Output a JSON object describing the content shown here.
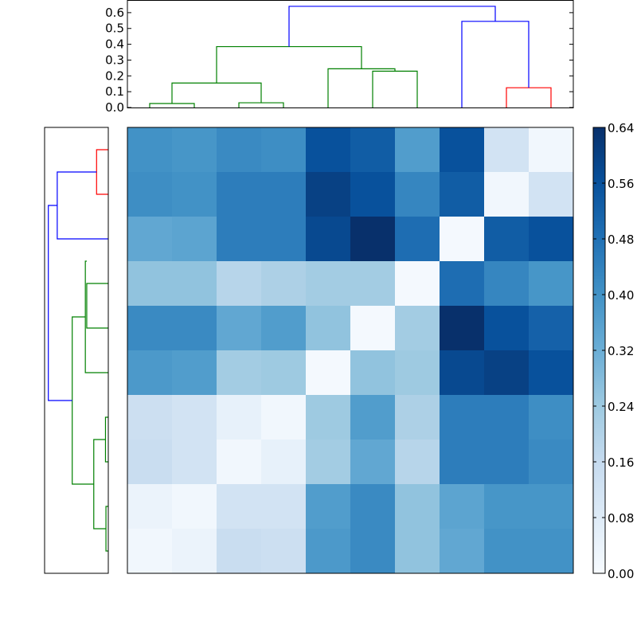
{
  "chart_data": [
    {
      "type": "heatmap",
      "title": "",
      "xlabel": "",
      "ylabel": "",
      "colormap": "Blues",
      "vmin": 0.0,
      "vmax": 0.64,
      "colorbar_ticks": [
        "0.00",
        "0.08",
        "0.16",
        "0.24",
        "0.32",
        "0.40",
        "0.48",
        "0.56",
        "0.64"
      ],
      "values": [
        [
          0.4,
          0.39,
          0.42,
          0.41,
          0.56,
          0.53,
          0.37,
          0.56,
          0.12,
          0.02
        ],
        [
          0.41,
          0.4,
          0.45,
          0.45,
          0.6,
          0.56,
          0.43,
          0.53,
          0.02,
          0.12
        ],
        [
          0.34,
          0.35,
          0.45,
          0.45,
          0.58,
          0.64,
          0.49,
          0.01,
          0.53,
          0.56
        ],
        [
          0.26,
          0.26,
          0.19,
          0.21,
          0.23,
          0.23,
          0.01,
          0.49,
          0.43,
          0.39
        ],
        [
          0.42,
          0.42,
          0.34,
          0.37,
          0.26,
          0.01,
          0.23,
          0.64,
          0.56,
          0.52
        ],
        [
          0.38,
          0.37,
          0.23,
          0.24,
          0.01,
          0.26,
          0.24,
          0.58,
          0.6,
          0.56
        ],
        [
          0.14,
          0.12,
          0.05,
          0.02,
          0.24,
          0.37,
          0.21,
          0.45,
          0.45,
          0.41
        ],
        [
          0.15,
          0.12,
          0.02,
          0.05,
          0.23,
          0.34,
          0.19,
          0.45,
          0.45,
          0.42
        ],
        [
          0.04,
          0.02,
          0.12,
          0.12,
          0.37,
          0.42,
          0.26,
          0.35,
          0.39,
          0.39
        ],
        [
          0.02,
          0.04,
          0.15,
          0.14,
          0.38,
          0.42,
          0.26,
          0.34,
          0.4,
          0.4
        ]
      ]
    },
    {
      "type": "dendrogram",
      "orientation": "top",
      "ylim": [
        0.0,
        0.68
      ],
      "yticks": [
        "0.0",
        "0.1",
        "0.2",
        "0.3",
        "0.4",
        "0.5",
        "0.6"
      ],
      "n_leaves": 10,
      "links": [
        {
          "xs": [
            0.5,
            0.5,
            1.5,
            1.5
          ],
          "ys": [
            0.0,
            0.025,
            0.025,
            0.0
          ],
          "color": "green"
        },
        {
          "xs": [
            2.5,
            2.5,
            3.5,
            3.5
          ],
          "ys": [
            0.0,
            0.03,
            0.03,
            0.0
          ],
          "color": "green"
        },
        {
          "xs": [
            1.0,
            1.0,
            3.0,
            3.0
          ],
          "ys": [
            0.025,
            0.155,
            0.155,
            0.03
          ],
          "color": "green"
        },
        {
          "xs": [
            5.5,
            5.5,
            6.5,
            6.5
          ],
          "ys": [
            0.0,
            0.23,
            0.23,
            0.0
          ],
          "color": "green"
        },
        {
          "xs": [
            4.5,
            4.5,
            6.0,
            6.0
          ],
          "ys": [
            0.0,
            0.245,
            0.245,
            0.23
          ],
          "color": "green"
        },
        {
          "xs": [
            2.0,
            2.0,
            5.25,
            5.25
          ],
          "ys": [
            0.155,
            0.385,
            0.385,
            0.245
          ],
          "color": "green"
        },
        {
          "xs": [
            8.5,
            8.5,
            9.5,
            9.5
          ],
          "ys": [
            0.0,
            0.125,
            0.125,
            0.0
          ],
          "color": "red"
        },
        {
          "xs": [
            7.5,
            7.5,
            9.0,
            9.0
          ],
          "ys": [
            0.0,
            0.545,
            0.545,
            0.125
          ],
          "color": "blue"
        },
        {
          "xs": [
            3.625,
            3.625,
            8.25,
            8.25
          ],
          "ys": [
            0.385,
            0.64,
            0.64,
            0.545
          ],
          "color": "blue"
        }
      ]
    },
    {
      "type": "dendrogram",
      "orientation": "left",
      "n_leaves": 10,
      "links": [
        {
          "xs": [
            0.5,
            0.5,
            1.5,
            1.5
          ],
          "ys": [
            0.0,
            0.125,
            0.125,
            0.0
          ],
          "color": "red"
        },
        {
          "xs": [
            1.0,
            1.0,
            2.5,
            2.5
          ],
          "ys": [
            0.125,
            0.545,
            0.545,
            0.0
          ],
          "color": "blue"
        },
        {
          "xs": [
            3.5,
            3.5,
            4.5,
            4.5
          ],
          "ys": [
            0.0,
            0.23,
            0.23,
            0.0
          ],
          "color": "green"
        },
        {
          "xs": [
            3.0,
            3.0,
            5.5,
            5.5
          ],
          "ys": [
            0.23,
            0.245,
            0.245,
            0.0
          ],
          "color": "green"
        },
        {
          "xs": [
            6.5,
            6.5,
            7.5,
            7.5
          ],
          "ys": [
            0.0,
            0.03,
            0.03,
            0.0
          ],
          "color": "green"
        },
        {
          "xs": [
            8.5,
            8.5,
            9.5,
            9.5
          ],
          "ys": [
            0.0,
            0.025,
            0.025,
            0.0
          ],
          "color": "green"
        },
        {
          "xs": [
            7.0,
            7.0,
            9.0,
            9.0
          ],
          "ys": [
            0.03,
            0.155,
            0.155,
            0.025
          ],
          "color": "green"
        },
        {
          "xs": [
            4.25,
            4.25,
            8.0,
            8.0
          ],
          "ys": [
            0.245,
            0.385,
            0.385,
            0.155
          ],
          "color": "green"
        },
        {
          "xs": [
            1.75,
            1.75,
            6.125,
            6.125
          ],
          "ys": [
            0.545,
            0.64,
            0.64,
            0.385
          ],
          "color": "blue"
        }
      ]
    }
  ]
}
